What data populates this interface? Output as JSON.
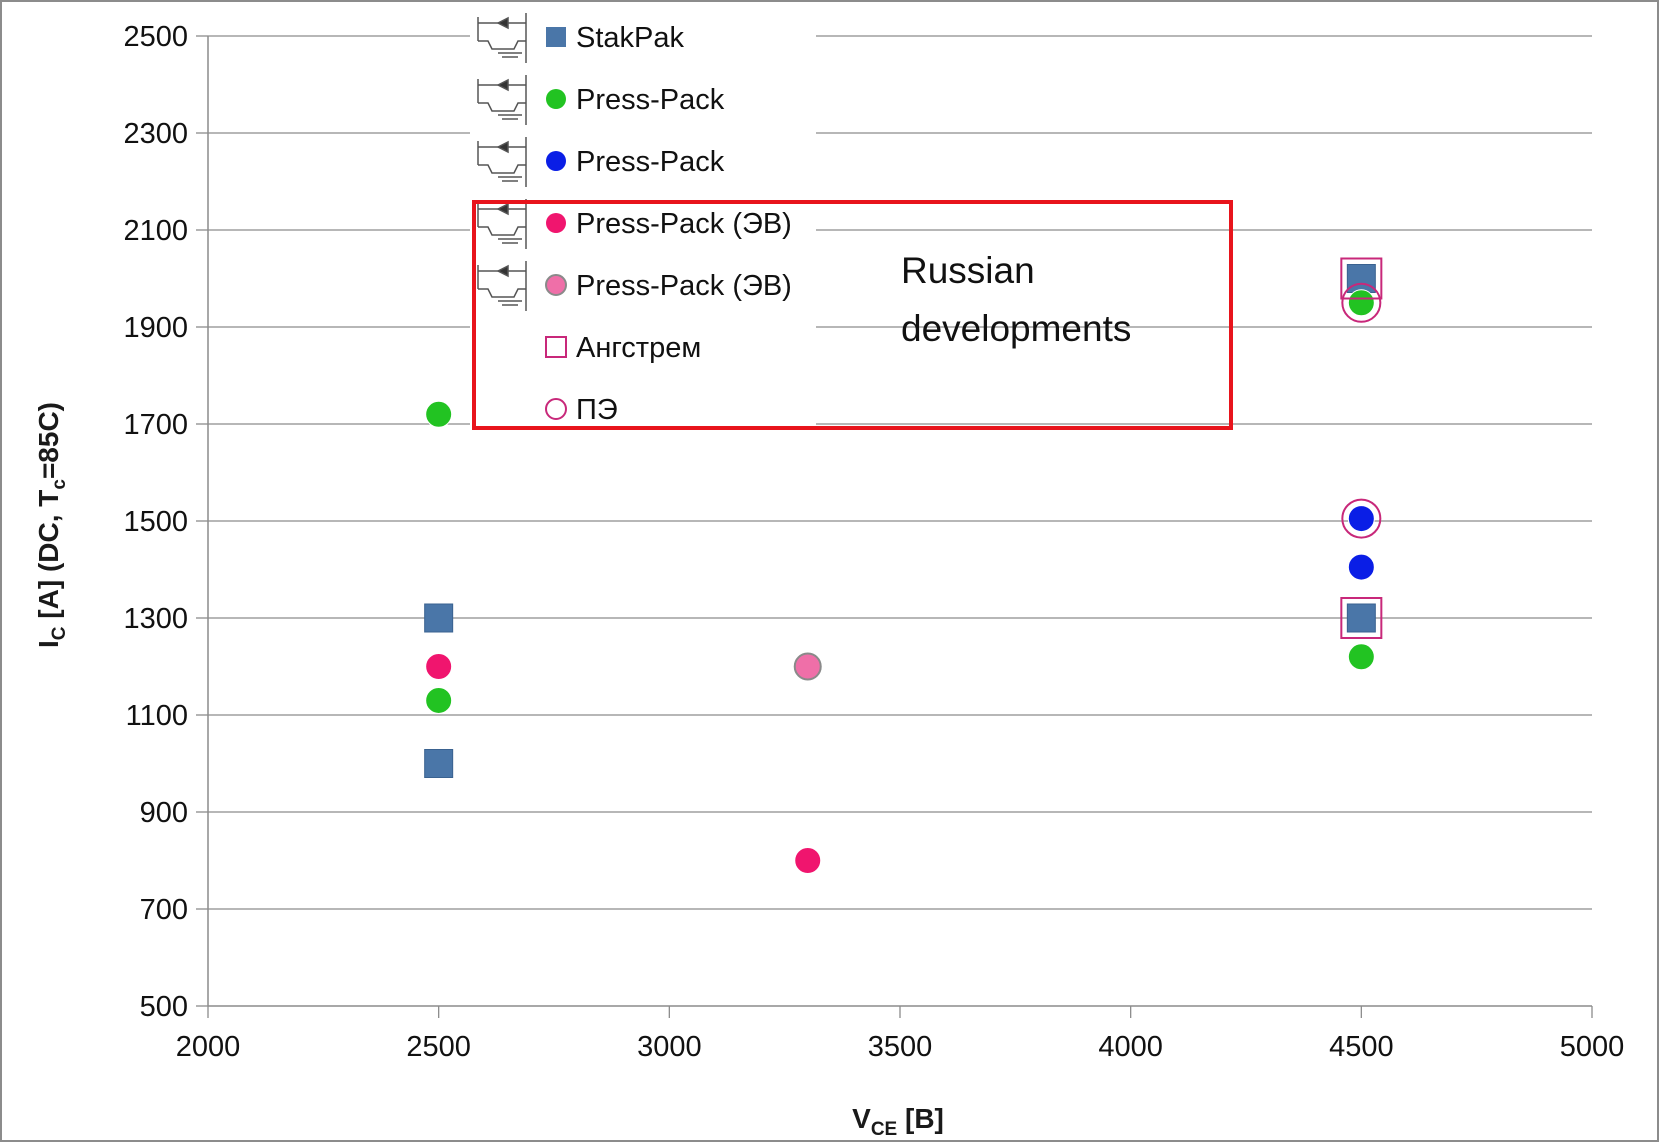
{
  "chart_data": {
    "type": "scatter",
    "xlim": [
      2000,
      5000
    ],
    "ylim": [
      500,
      2500
    ],
    "x_ticks": [
      2000,
      2500,
      3000,
      3500,
      4000,
      4500,
      5000
    ],
    "y_ticks": [
      500,
      700,
      900,
      1100,
      1300,
      1500,
      1700,
      1900,
      2100,
      2300,
      2500
    ],
    "x_tick_labels": [
      "2000",
      "2500",
      "3000",
      "3500",
      "4000",
      "4500",
      "5000"
    ],
    "y_tick_labels": [
      "500",
      "700",
      "900",
      "1100",
      "1300",
      "1500",
      "1700",
      "1900",
      "2100",
      "2300",
      "2500"
    ],
    "xlabel": {
      "main": "V",
      "sub": "CE",
      "rest": "  [B]"
    },
    "ylabel": {
      "p1": "I",
      "s1": "C",
      "p2": " [A]  (DC, T",
      "s2": "c",
      "p3": "=85C)"
    },
    "grid": "horizontal",
    "legend_position": "top-left",
    "series": [
      {
        "name": "StakPak",
        "marker": "square-filled",
        "color": "#4a76a8",
        "points": [
          [
            2500,
            1300
          ],
          [
            2500,
            1000
          ],
          [
            4500,
            2000
          ],
          [
            4500,
            1300
          ]
        ]
      },
      {
        "name": "Press-Pack",
        "marker": "circle-filled",
        "color": "#22c322",
        "points": [
          [
            2500,
            1720
          ],
          [
            2500,
            1130
          ],
          [
            4500,
            1950
          ],
          [
            4500,
            1220
          ]
        ]
      },
      {
        "name": "Press-Pack",
        "marker": "circle-filled",
        "color": "#0a1ee6",
        "points": [
          [
            4500,
            1505
          ],
          [
            4500,
            1405
          ]
        ]
      },
      {
        "name": "Press-Pack (ЭВ)",
        "marker": "circle-filled",
        "color": "#f0156e",
        "points": [
          [
            2500,
            1200
          ],
          [
            3300,
            800
          ]
        ]
      },
      {
        "name": "Press-Pack (ЭВ)",
        "marker": "circle-filled-gray-edge",
        "color": "#ef6fa8",
        "points": [
          [
            3300,
            1200
          ]
        ]
      },
      {
        "name": "Ангстрем",
        "marker": "square-open",
        "color": "#c8287a",
        "points": [
          [
            4500,
            2000
          ],
          [
            4500,
            1300
          ]
        ]
      },
      {
        "name": "ПЭ",
        "marker": "circle-open",
        "color": "#c8287a",
        "points": [
          [
            4500,
            1950
          ],
          [
            4500,
            1505
          ]
        ]
      }
    ],
    "annotation": {
      "line1": "Russian",
      "line2": "developments",
      "box_color": "#e8141c"
    }
  }
}
